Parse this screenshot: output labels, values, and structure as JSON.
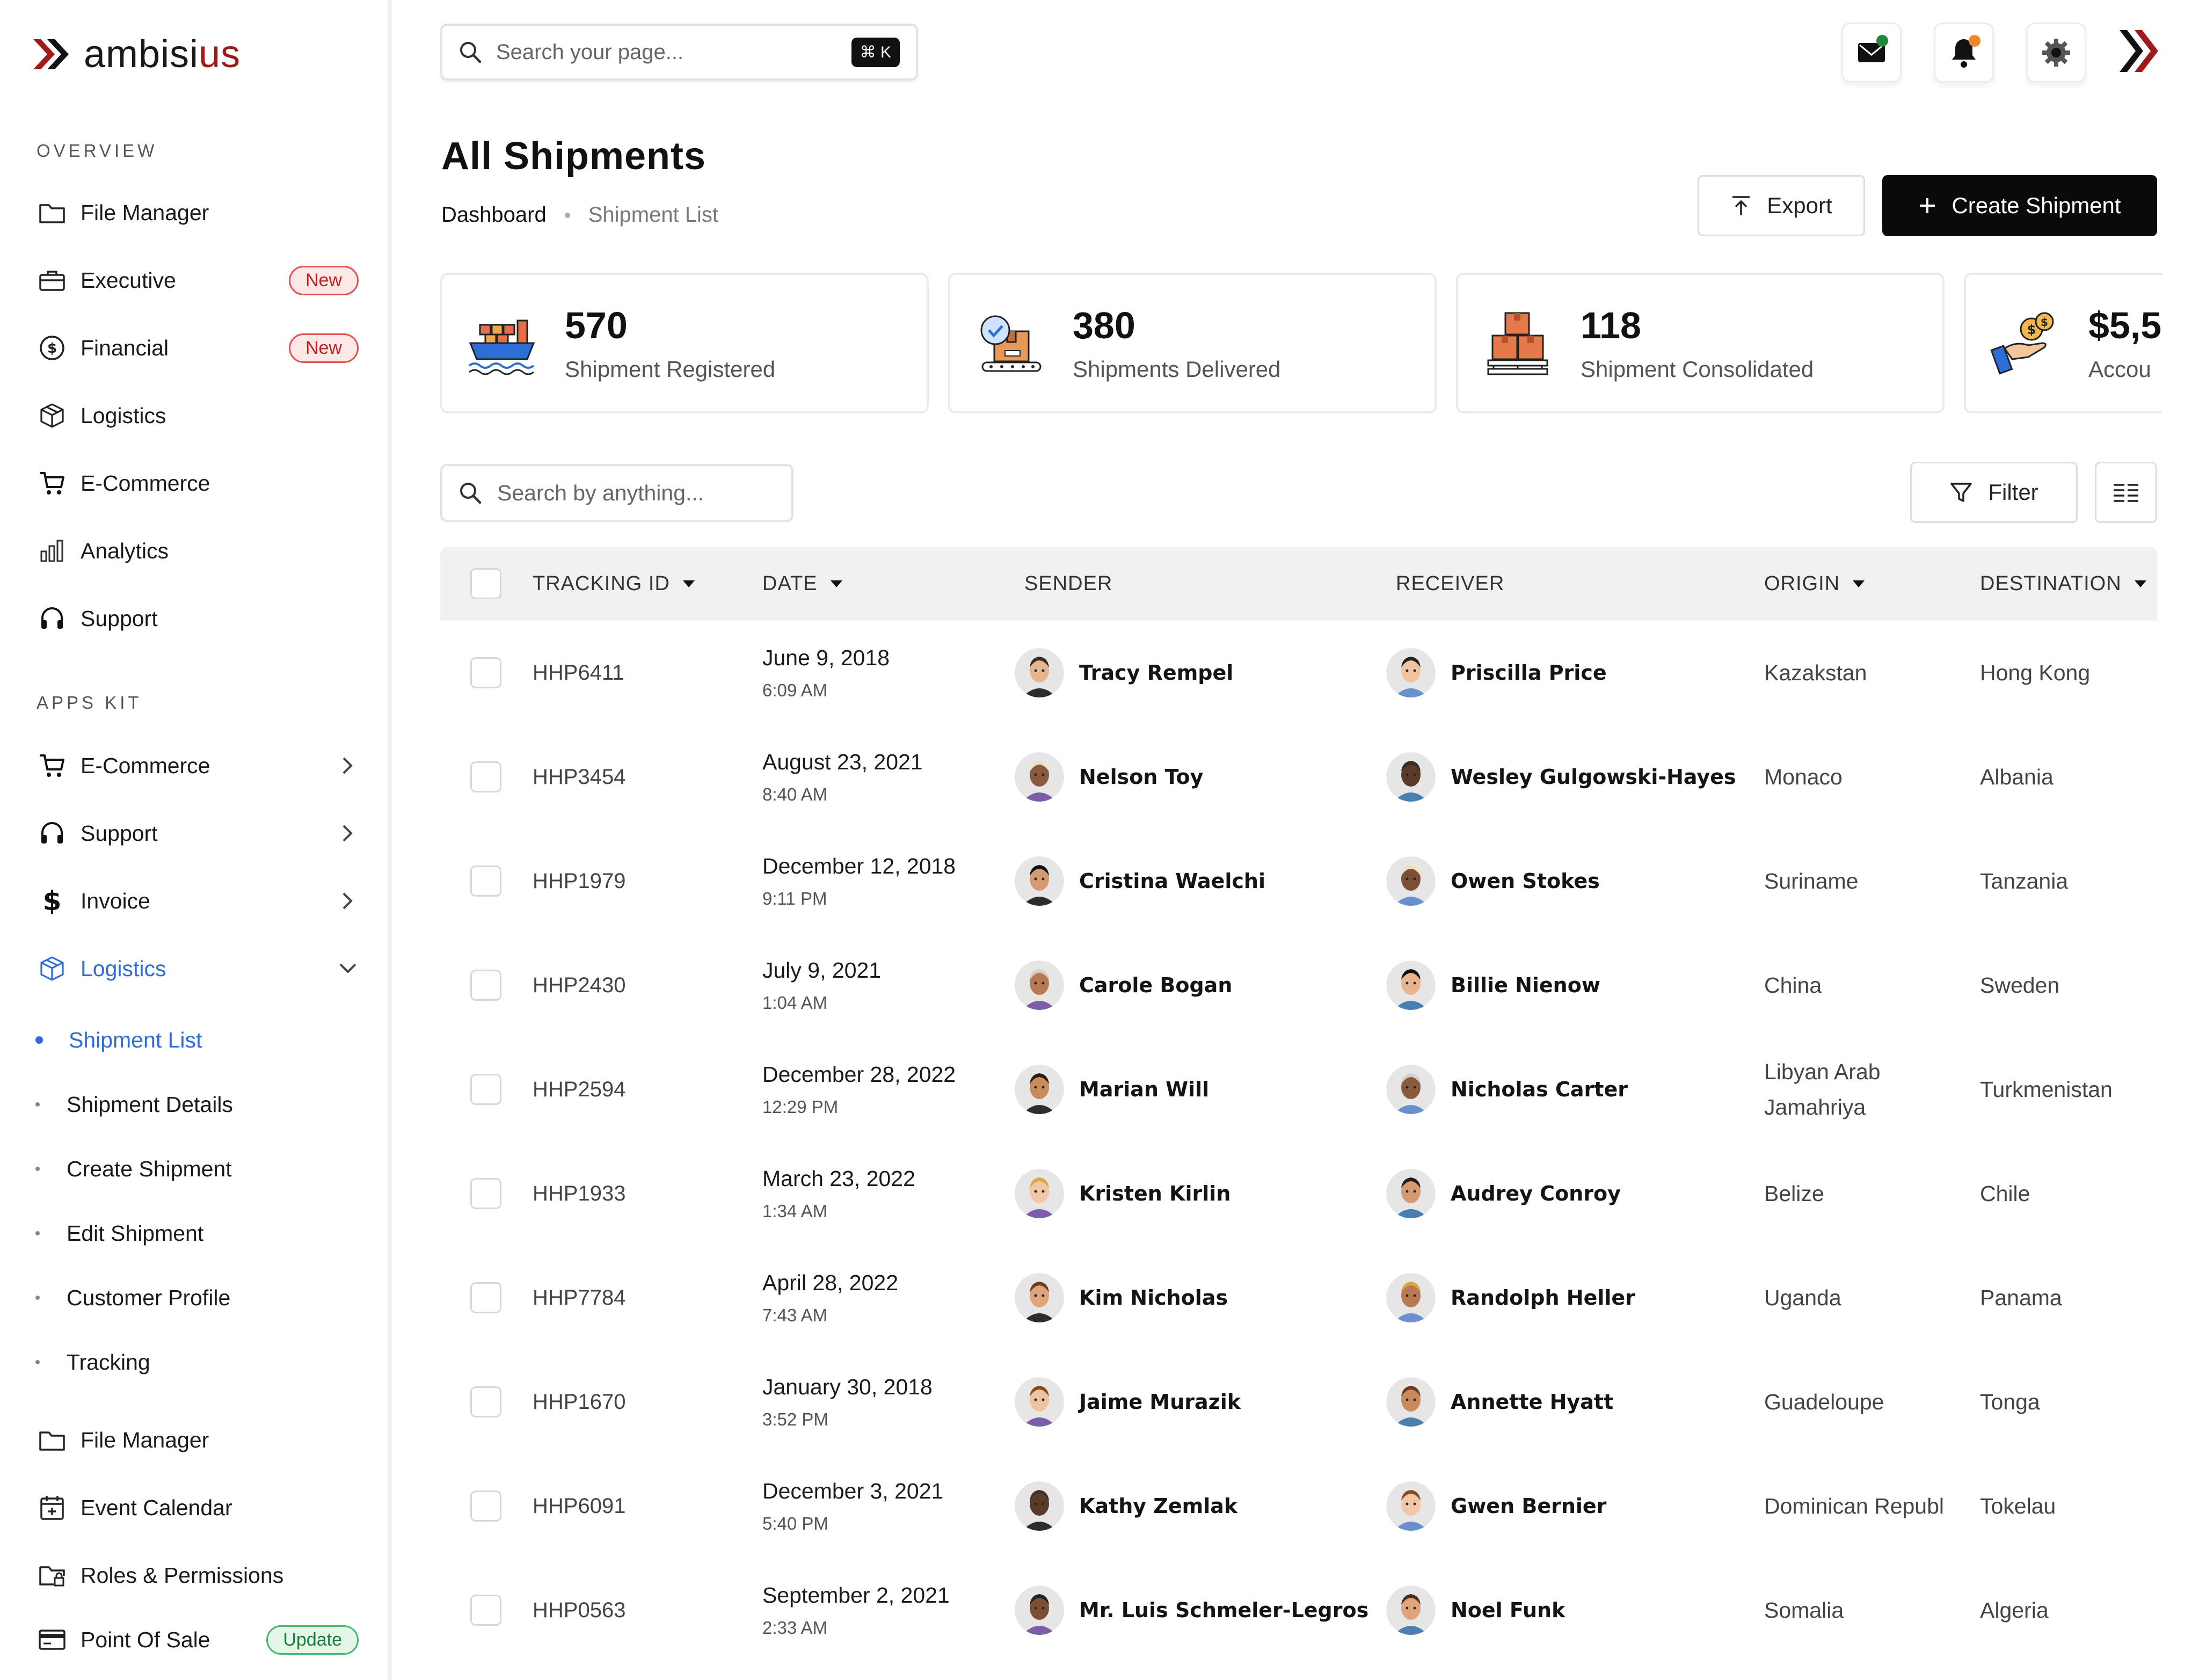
{
  "brand": {
    "name_part1": "ambisi",
    "name_part2": "us",
    "accent": "#a11a1a"
  },
  "sidebar": {
    "overview_label": "OVERVIEW",
    "overview": [
      {
        "label": "File Manager",
        "icon": "folder-icon"
      },
      {
        "label": "Executive",
        "icon": "briefcase-icon",
        "badge": "New"
      },
      {
        "label": "Financial",
        "icon": "dollar-circle-icon",
        "badge": "New"
      },
      {
        "label": "Logistics",
        "icon": "box-icon"
      },
      {
        "label": "E-Commerce",
        "icon": "cart-icon"
      },
      {
        "label": "Analytics",
        "icon": "bar-chart-icon"
      },
      {
        "label": "Support",
        "icon": "headset-icon"
      }
    ],
    "apps_label": "APPS KIT",
    "apps": [
      {
        "label": "E-Commerce",
        "icon": "cart-icon"
      },
      {
        "label": "Support",
        "icon": "headset-icon"
      },
      {
        "label": "Invoice",
        "icon": "dollar-icon"
      },
      {
        "label": "Logistics",
        "icon": "box-icon"
      }
    ],
    "logistics_sub": [
      "Shipment List",
      "Shipment Details",
      "Create Shipment",
      "Edit Shipment",
      "Customer Profile",
      "Tracking"
    ],
    "more": [
      {
        "label": "File Manager",
        "icon": "folder-icon"
      },
      {
        "label": "Event Calendar",
        "icon": "calendar-icon"
      },
      {
        "label": "Roles & Permissions",
        "icon": "folder-lock-icon"
      },
      {
        "label": "Point Of Sale",
        "icon": "pos-icon",
        "badge": "Update"
      }
    ]
  },
  "topbar": {
    "search_placeholder": "Search your page...",
    "shortcut": "⌘ K"
  },
  "page": {
    "title": "All Shipments",
    "breadcrumb": [
      "Dashboard",
      "Shipment List"
    ],
    "export_label": "Export",
    "create_label": "Create Shipment"
  },
  "stats": [
    {
      "value": "570",
      "label": "Shipment Registered",
      "icon": "cargo-ship-icon"
    },
    {
      "value": "380",
      "label": "Shipments Delivered",
      "icon": "delivered-box-icon"
    },
    {
      "value": "118",
      "label": "Shipment Consolidated",
      "icon": "stacked-boxes-icon"
    },
    {
      "value": "$5,5",
      "label": "Accou",
      "icon": "money-hand-icon"
    }
  ],
  "table": {
    "search_placeholder": "Search by anything...",
    "filter_label": "Filter",
    "columns": [
      "TRACKING ID",
      "DATE",
      "SENDER",
      "RECEIVER",
      "ORIGIN",
      "DESTINATION"
    ],
    "rows": [
      {
        "id": "HHP6411",
        "date": "June 9, 2018",
        "time": "6:09 AM",
        "sender": "Tracy Rempel",
        "receiver": "Priscilla Price",
        "origin": "Kazakstan",
        "destination": "Hong Kong"
      },
      {
        "id": "HHP3454",
        "date": "August 23, 2021",
        "time": "8:40 AM",
        "sender": "Nelson Toy",
        "receiver": "Wesley Gulgowski-Hayes",
        "origin": "Monaco",
        "destination": "Albania"
      },
      {
        "id": "HHP1979",
        "date": "December 12, 2018",
        "time": "9:11 PM",
        "sender": "Cristina Waelchi",
        "receiver": "Owen Stokes",
        "origin": "Suriname",
        "destination": "Tanzania"
      },
      {
        "id": "HHP2430",
        "date": "July 9, 2021",
        "time": "1:04 AM",
        "sender": "Carole Bogan",
        "receiver": "Billie Nienow",
        "origin": "China",
        "destination": "Sweden"
      },
      {
        "id": "HHP2594",
        "date": "December 28, 2022",
        "time": "12:29 PM",
        "sender": "Marian Will",
        "receiver": "Nicholas Carter",
        "origin": "Libyan Arab Jamahriya",
        "destination": "Turkmenistan"
      },
      {
        "id": "HHP1933",
        "date": "March 23, 2022",
        "time": "1:34 AM",
        "sender": "Kristen Kirlin",
        "receiver": "Audrey Conroy",
        "origin": "Belize",
        "destination": "Chile"
      },
      {
        "id": "HHP7784",
        "date": "April 28, 2022",
        "time": "7:43 AM",
        "sender": "Kim Nicholas",
        "receiver": "Randolph Heller",
        "origin": "Uganda",
        "destination": "Panama"
      },
      {
        "id": "HHP1670",
        "date": "January 30, 2018",
        "time": "3:52 PM",
        "sender": "Jaime Murazik",
        "receiver": "Annette Hyatt",
        "origin": "Guadeloupe",
        "destination": "Tonga"
      },
      {
        "id": "HHP6091",
        "date": "December 3, 2021",
        "time": "5:40 PM",
        "sender": "Kathy Zemlak",
        "receiver": "Gwen Bernier",
        "origin": "Dominican Republ",
        "destination": "Tokelau"
      },
      {
        "id": "HHP0563",
        "date": "September 2, 2021",
        "time": "2:33 AM",
        "sender": "Mr. Luis Schmeler-Legros",
        "receiver": "Noel Funk",
        "origin": "Somalia",
        "destination": "Algeria"
      }
    ]
  }
}
